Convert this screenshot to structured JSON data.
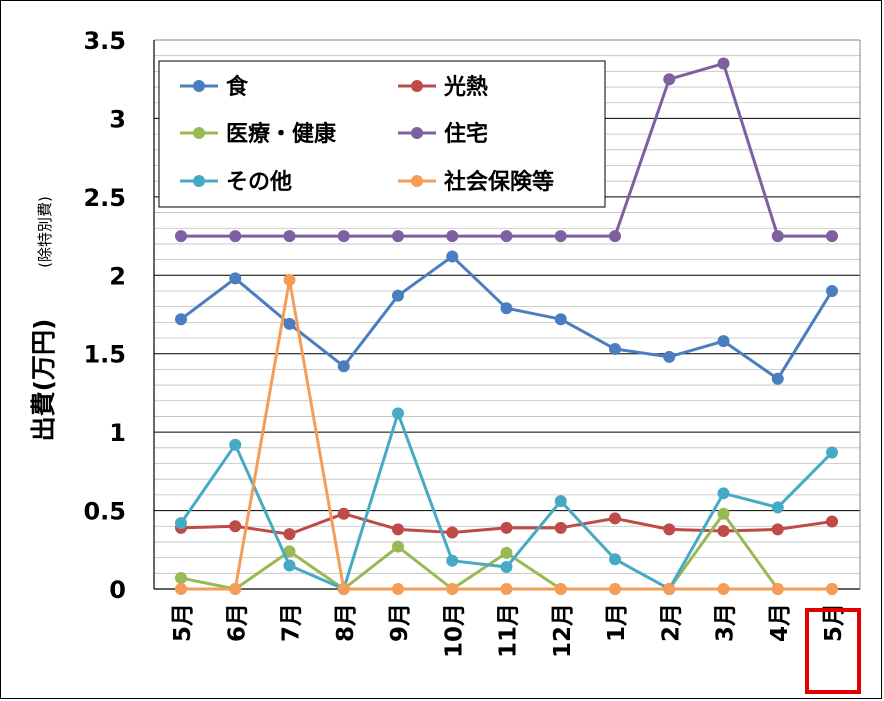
{
  "chart_data": {
    "type": "line",
    "categories": [
      "5月",
      "6月",
      "7月",
      "8月",
      "9月",
      "10月",
      "11月",
      "12月",
      "1月",
      "2月",
      "3月",
      "4月",
      "5月"
    ],
    "ylabel": "出費(万円)",
    "ylabel_note": "(除特別費)",
    "ylim": [
      0,
      3.5
    ],
    "yticks": [
      0,
      0.5,
      1,
      1.5,
      2,
      2.5,
      3,
      3.5
    ],
    "ytick_labels": [
      "0",
      "0.5",
      "1",
      "1.5",
      "2",
      "2.5",
      "3",
      "3.5"
    ],
    "grid": true,
    "legend_position": "top-left",
    "highlighted_category_index": 12,
    "highlight_color": "#e00000",
    "series": [
      {
        "name": "食",
        "color": "#4a7ebf",
        "values": [
          1.72,
          1.98,
          1.69,
          1.42,
          1.87,
          2.12,
          1.79,
          1.72,
          1.53,
          1.48,
          1.58,
          1.34,
          1.9
        ]
      },
      {
        "name": "光熱",
        "color": "#be4b48",
        "values": [
          0.39,
          0.4,
          0.35,
          0.48,
          0.38,
          0.36,
          0.39,
          0.39,
          0.45,
          0.38,
          0.37,
          0.38,
          0.43
        ]
      },
      {
        "name": "医療・健康",
        "color": "#98b954",
        "values": [
          0.07,
          0,
          0.24,
          0,
          0.27,
          0,
          0.23,
          0,
          0,
          0,
          0.48,
          0,
          0
        ]
      },
      {
        "name": "住宅",
        "color": "#7d60a0",
        "values": [
          2.25,
          2.25,
          2.25,
          2.25,
          2.25,
          2.25,
          2.25,
          2.25,
          2.25,
          3.25,
          3.35,
          2.25,
          2.25
        ]
      },
      {
        "name": "その他",
        "color": "#46aac4",
        "values": [
          0.42,
          0.92,
          0.15,
          0,
          1.12,
          0.18,
          0.14,
          0.56,
          0.19,
          0,
          0.61,
          0.52,
          0.87
        ]
      },
      {
        "name": "社会保険等",
        "color": "#f59d56",
        "values": [
          0,
          0,
          1.97,
          0,
          0,
          0,
          0,
          0,
          0,
          0,
          0,
          0,
          0
        ]
      }
    ]
  }
}
